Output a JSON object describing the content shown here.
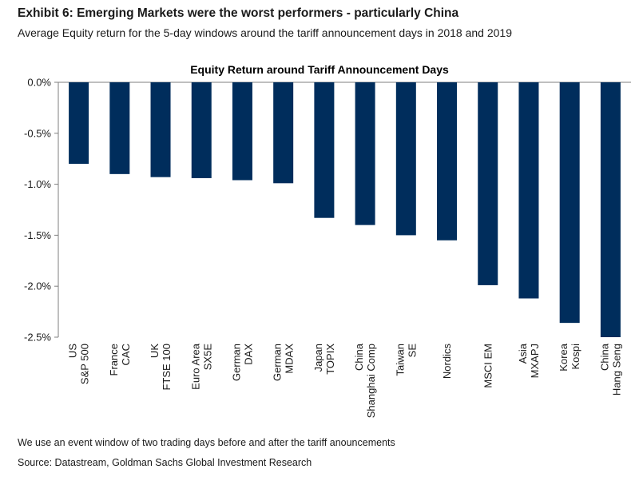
{
  "exhibit": {
    "title": "Exhibit 6: Emerging Markets were the worst performers - particularly China",
    "subtitle": "Average Equity return for the 5-day windows around the tariff announcement days in 2018 and 2019"
  },
  "footnote": "We use an event window of two trading days before and after the tariff anouncements",
  "source": "Source: Datastream, Goldman Sachs Global Investment Research",
  "colors": {
    "bar": "#002d5c",
    "axis": "#7f7f7f"
  },
  "chart_data": {
    "type": "bar",
    "title": "Equity Return around Tariff Announcement Days",
    "xlabel": "",
    "ylabel": "",
    "ylim": [
      -2.5,
      0.0
    ],
    "yticks": [
      0.0,
      -0.5,
      -1.0,
      -1.5,
      -2.0,
      -2.5
    ],
    "ytick_labels": [
      "0.0%",
      "-0.5%",
      "-1.0%",
      "-1.5%",
      "-2.0%",
      "-2.5%"
    ],
    "categories": [
      [
        "US",
        "S&P 500"
      ],
      [
        "France",
        "CAC"
      ],
      [
        "UK",
        "FTSE 100"
      ],
      [
        "Euro Area",
        "SX5E"
      ],
      [
        "German",
        "DAX"
      ],
      [
        "German",
        "MDAX"
      ],
      [
        "Japan",
        "TOPIX"
      ],
      [
        "China",
        "Shanghai Comp"
      ],
      [
        "Taiwan",
        "SE"
      ],
      [
        "Nordics"
      ],
      [
        "MSCI EM"
      ],
      [
        "Asia",
        "MXAPJ"
      ],
      [
        "Korea",
        "Kospi"
      ],
      [
        "China",
        "Hang Seng"
      ]
    ],
    "values": [
      -0.8,
      -0.9,
      -0.93,
      -0.94,
      -0.96,
      -0.99,
      -1.33,
      -1.4,
      -1.5,
      -1.55,
      -1.99,
      -2.12,
      -2.36,
      -2.5
    ],
    "grid": false,
    "legend": "none"
  }
}
